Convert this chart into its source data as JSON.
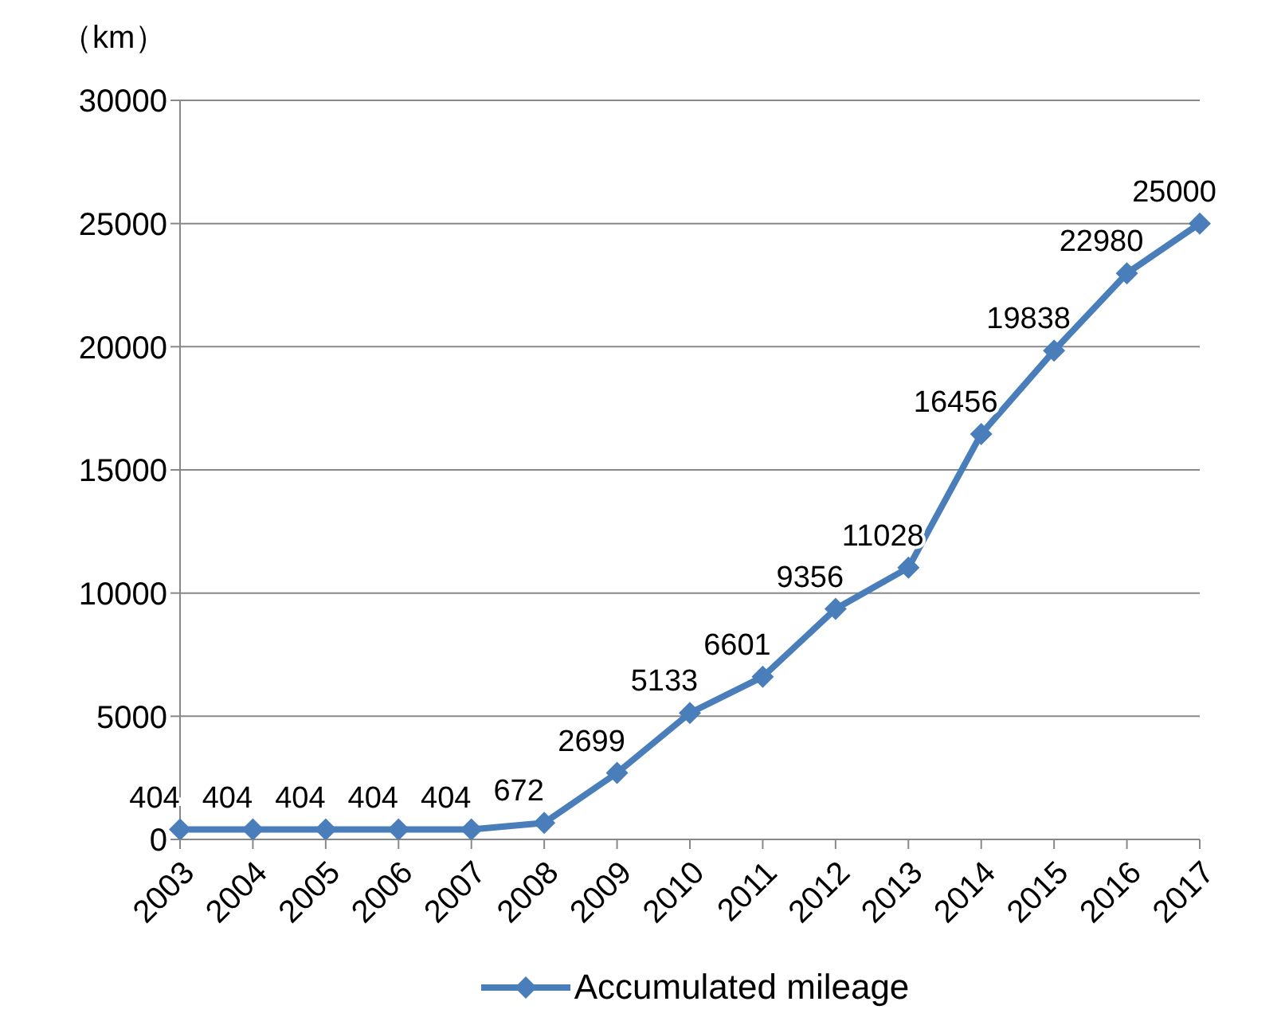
{
  "chart_data": {
    "type": "line",
    "ylabel": "（km）",
    "categories": [
      "2003",
      "2004",
      "2005",
      "2006",
      "2007",
      "2008",
      "2009",
      "2010",
      "2011",
      "2012",
      "2013",
      "2014",
      "2015",
      "2016",
      "2017"
    ],
    "series": [
      {
        "name": "Accumulated mileage",
        "color": "#4a7ebb",
        "values": [
          404,
          404,
          404,
          404,
          404,
          672,
          2699,
          5133,
          6601,
          9356,
          11028,
          16456,
          19838,
          22980,
          25000
        ]
      }
    ],
    "ylim": [
      0,
      30000
    ],
    "yticks": [
      0,
      5000,
      10000,
      15000,
      20000,
      25000,
      30000
    ],
    "grid": "y",
    "legend": "bottom",
    "marker": "diamond",
    "line_style": "solid",
    "data_labels": true
  }
}
